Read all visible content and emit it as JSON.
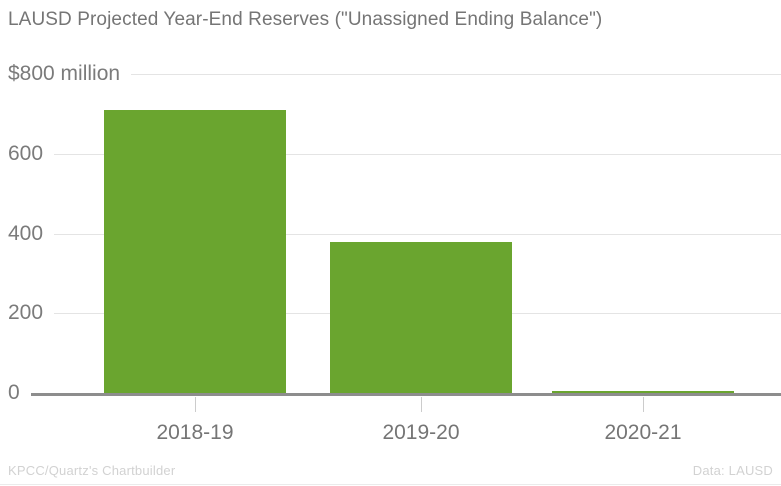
{
  "chart_data": {
    "type": "bar",
    "title": "LAUSD Projected Year-End Reserves (\"Unassigned Ending Balance\")",
    "categories": [
      "2018-19",
      "2019-20",
      "2020-21"
    ],
    "values": [
      710,
      378,
      5
    ],
    "unit": "million USD",
    "ylim": [
      0,
      800
    ],
    "y_ticks": [
      {
        "value": 800,
        "label": "$800 million"
      },
      {
        "value": 600,
        "label": "600"
      },
      {
        "value": 400,
        "label": "400"
      },
      {
        "value": 200,
        "label": "200"
      },
      {
        "value": 0,
        "label": "0"
      }
    ],
    "grid": true,
    "legend_position": "none",
    "bar_color": "#6aa52f",
    "footer_left": "KPCC/Quartz's Chartbuilder",
    "footer_right": "Data: LAUSD"
  }
}
